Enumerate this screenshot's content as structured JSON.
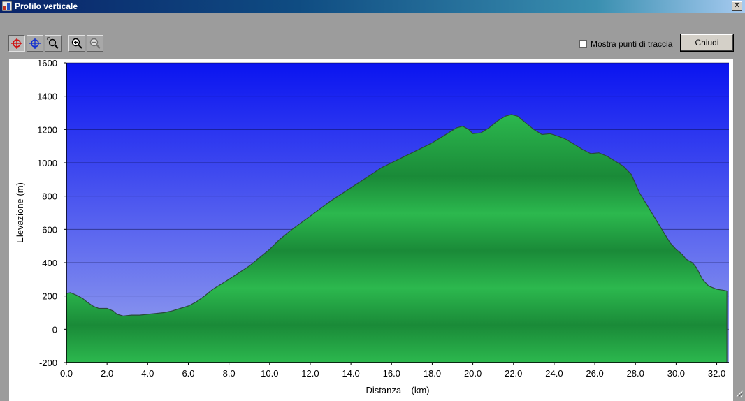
{
  "window": {
    "title": "Profilo verticale",
    "close_glyph": "✕"
  },
  "toolbar": {
    "buttons": [
      {
        "icon": "crosshair-red-icon"
      },
      {
        "icon": "crosshair-blue-icon"
      },
      {
        "icon": "zoom-area-icon"
      },
      {
        "icon": "zoom-in-icon"
      },
      {
        "icon": "zoom-out-icon"
      }
    ],
    "checkbox_label": "Mostra punti di traccia",
    "checkbox_checked": false,
    "close_label": "Chiudi"
  },
  "chart_data": {
    "type": "area",
    "xlabel": "Distanza    (km)",
    "ylabel": "Elevazione (m)",
    "xlim": [
      0,
      32.6
    ],
    "ylim": [
      -200,
      1600
    ],
    "x_ticks": [
      "0.0",
      "2.0",
      "4.0",
      "6.0",
      "8.0",
      "10.0",
      "12.0",
      "14.0",
      "16.0",
      "18.0",
      "20.0",
      "22.0",
      "24.0",
      "26.0",
      "28.0",
      "30.0",
      "32.0"
    ],
    "y_ticks": [
      "1600",
      "1400",
      "1200",
      "1000",
      "800",
      "600",
      "400",
      "200",
      "0",
      "-200"
    ],
    "grid": true,
    "legend": "none",
    "colors": {
      "sky_top": "#0a14f0",
      "sky_bottom": "#9aa6ee",
      "fill": "#27a648",
      "line": "#2a4a3a"
    },
    "series": [
      {
        "x": [
          0,
          0.2,
          0.5,
          0.8,
          1.0,
          1.3,
          1.6,
          2.0,
          2.3,
          2.5,
          2.8,
          3.2,
          3.6,
          4.0,
          4.4,
          4.8,
          5.2,
          5.6,
          6.0,
          6.4,
          6.8,
          7.2,
          7.6,
          8.0,
          8.5,
          9.0,
          9.5,
          10.0,
          10.5,
          11.0,
          11.5,
          12.0,
          12.5,
          13.0,
          13.5,
          14.0,
          14.5,
          15.0,
          15.5,
          16.0,
          16.5,
          17.0,
          17.5,
          18.0,
          18.4,
          18.8,
          19.2,
          19.5,
          19.8,
          20.0,
          20.4,
          20.8,
          21.2,
          21.6,
          21.9,
          22.2,
          22.6,
          23.0,
          23.4,
          23.8,
          24.2,
          24.6,
          25.0,
          25.4,
          25.8,
          26.2,
          26.6,
          27.0,
          27.4,
          27.8,
          28.2,
          28.6,
          29.0,
          29.4,
          29.7,
          30.0,
          30.3,
          30.5,
          30.8,
          31.0,
          31.3,
          31.6,
          32.0,
          32.3,
          32.5
        ],
        "y": [
          215,
          220,
          205,
          185,
          165,
          140,
          125,
          125,
          110,
          90,
          80,
          85,
          85,
          90,
          95,
          100,
          110,
          125,
          140,
          165,
          200,
          240,
          270,
          300,
          340,
          380,
          430,
          480,
          540,
          590,
          635,
          680,
          725,
          770,
          810,
          850,
          890,
          930,
          970,
          1000,
          1030,
          1060,
          1090,
          1120,
          1150,
          1180,
          1210,
          1220,
          1200,
          1175,
          1180,
          1210,
          1250,
          1280,
          1290,
          1280,
          1240,
          1200,
          1170,
          1175,
          1160,
          1140,
          1110,
          1080,
          1055,
          1060,
          1040,
          1010,
          980,
          930,
          820,
          740,
          660,
          580,
          520,
          480,
          450,
          420,
          400,
          370,
          300,
          260,
          240,
          235,
          230
        ]
      }
    ]
  }
}
